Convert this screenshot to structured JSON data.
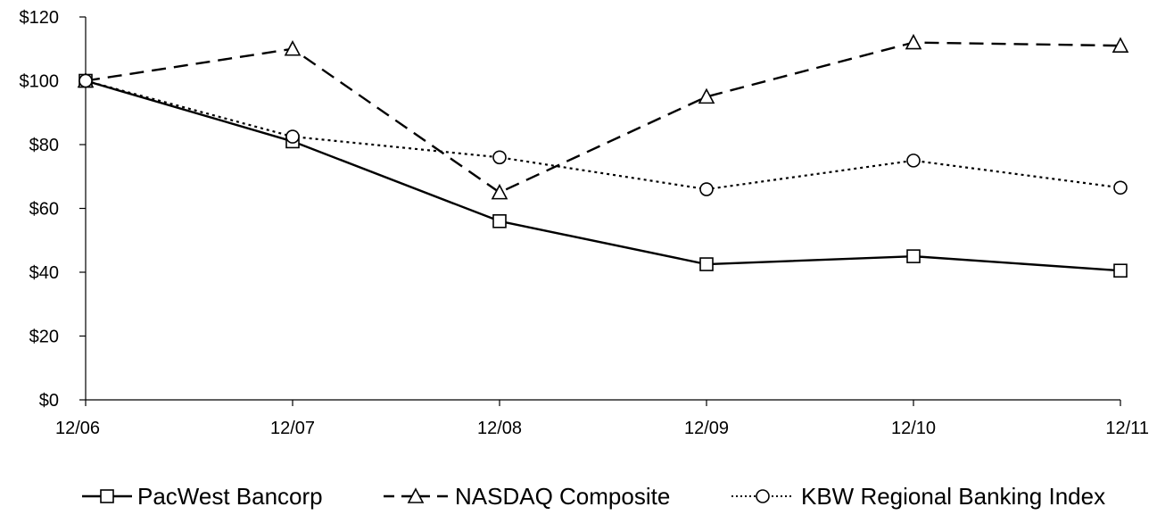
{
  "chart_data": {
    "type": "line",
    "title": "",
    "xlabel": "",
    "ylabel": "",
    "categories": [
      "12/06",
      "12/07",
      "12/08",
      "12/09",
      "12/10",
      "12/11"
    ],
    "ylim": [
      0,
      120
    ],
    "yticks": [
      0,
      20,
      40,
      60,
      80,
      100,
      120
    ],
    "ytick_labels": [
      "$0",
      "$20",
      "$40",
      "$60",
      "$80",
      "$100",
      "$120"
    ],
    "grid": false,
    "legend_position": "bottom",
    "series": [
      {
        "name": "PacWest Bancorp",
        "values": [
          100,
          81,
          56,
          42.5,
          45,
          40.5
        ],
        "line": "solid",
        "marker": "square",
        "color": "#000000"
      },
      {
        "name": "NASDAQ Composite",
        "values": [
          100,
          110,
          65,
          95,
          112,
          111
        ],
        "line": "dashed",
        "marker": "triangle",
        "color": "#000000"
      },
      {
        "name": "KBW Regional Banking Index",
        "values": [
          100,
          82.5,
          76,
          66,
          75,
          66.5
        ],
        "line": "dotted",
        "marker": "circle",
        "color": "#000000"
      }
    ]
  }
}
